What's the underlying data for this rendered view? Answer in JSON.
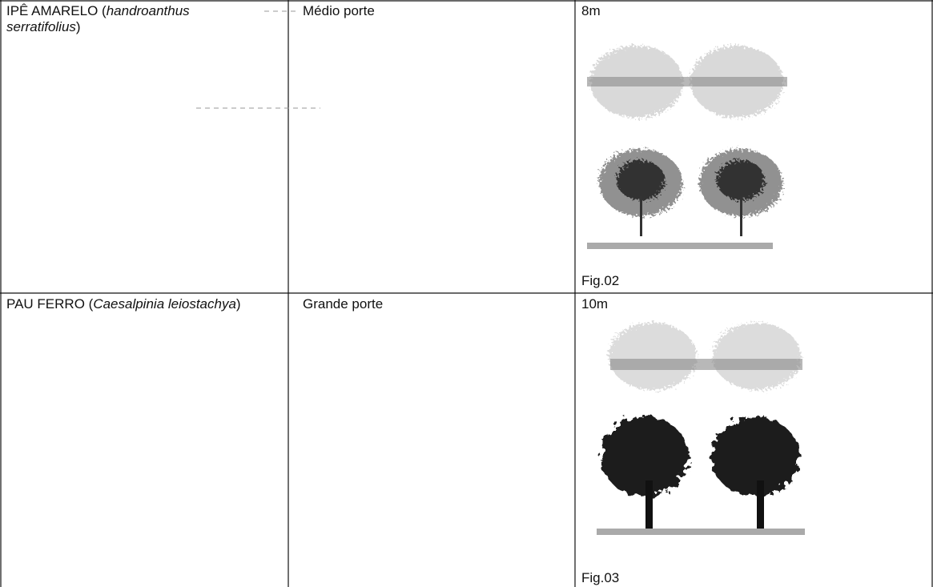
{
  "table": {
    "rows": [
      {
        "species": {
          "common": "IPÊ AMARELO (",
          "scientific": "handroanthus serratifolius",
          "close": ")"
        },
        "size": "Médio porte",
        "height": "8m",
        "figure": "Fig.02"
      },
      {
        "species": {
          "common": "PAU FERRO (",
          "scientific": "Caesalpinia leiostachya",
          "close": ")"
        },
        "size": "Grande porte",
        "height": "10m",
        "figure": "Fig.03"
      }
    ]
  }
}
